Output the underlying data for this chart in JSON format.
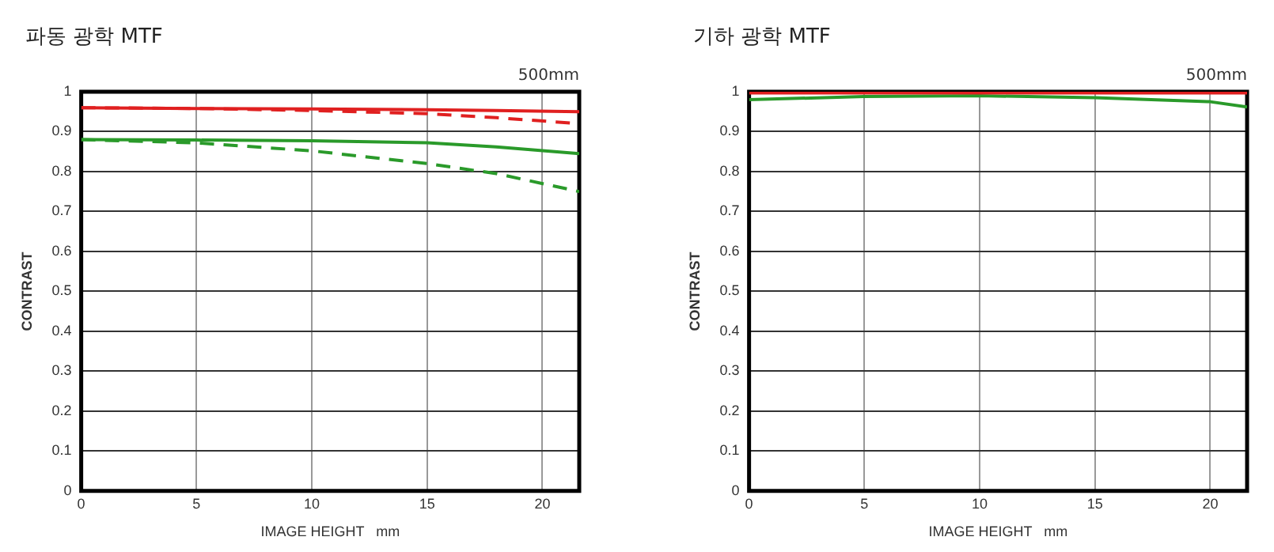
{
  "chart_data": [
    {
      "type": "line",
      "title": "파동 광학 MTF",
      "xlabel": "IMAGE HEIGHT   mm",
      "ylabel": "CONTRAST",
      "annotations": [
        "500mm"
      ],
      "x": [
        0,
        5,
        10,
        15,
        18,
        21.6
      ],
      "xlim": [
        0,
        21.6
      ],
      "xticks": [
        0,
        5,
        10,
        15,
        20
      ],
      "ylim": [
        0,
        1
      ],
      "yticks": [
        0,
        0.1,
        0.2,
        0.3,
        0.4,
        0.5,
        0.6,
        0.7,
        0.8,
        0.9,
        1
      ],
      "grid": true,
      "legend": false,
      "marker": "none",
      "series": [
        {
          "color": "#e02020",
          "line_style": "solid",
          "values": [
            0.96,
            0.958,
            0.957,
            0.955,
            0.953,
            0.95
          ]
        },
        {
          "color": "#e02020",
          "line_style": "dashed",
          "values": [
            0.96,
            0.958,
            0.953,
            0.945,
            0.935,
            0.92
          ]
        },
        {
          "color": "#2a9a2a",
          "line_style": "solid",
          "values": [
            0.88,
            0.879,
            0.877,
            0.872,
            0.862,
            0.845
          ]
        },
        {
          "color": "#2a9a2a",
          "line_style": "dashed",
          "values": [
            0.88,
            0.872,
            0.852,
            0.82,
            0.795,
            0.75
          ]
        }
      ]
    },
    {
      "type": "line",
      "title": "기하 광학 MTF",
      "xlabel": "IMAGE HEIGHT   mm",
      "ylabel": "CONTRAST",
      "annotations": [
        "500mm"
      ],
      "x": [
        0,
        5,
        10,
        15,
        20,
        21.6
      ],
      "xlim": [
        0,
        21.6
      ],
      "xticks": [
        0,
        5,
        10,
        15,
        20
      ],
      "ylim": [
        0,
        1
      ],
      "yticks": [
        0,
        0.1,
        0.2,
        0.3,
        0.4,
        0.5,
        0.6,
        0.7,
        0.8,
        0.9,
        1
      ],
      "grid": true,
      "legend": false,
      "marker": "none",
      "series": [
        {
          "color": "#e02020",
          "line_style": "solid",
          "values": [
            0.997,
            0.997,
            0.997,
            0.997,
            0.997,
            0.997
          ]
        },
        {
          "color": "#2a9a2a",
          "line_style": "solid",
          "values": [
            0.98,
            0.988,
            0.99,
            0.985,
            0.975,
            0.962
          ]
        }
      ]
    }
  ]
}
